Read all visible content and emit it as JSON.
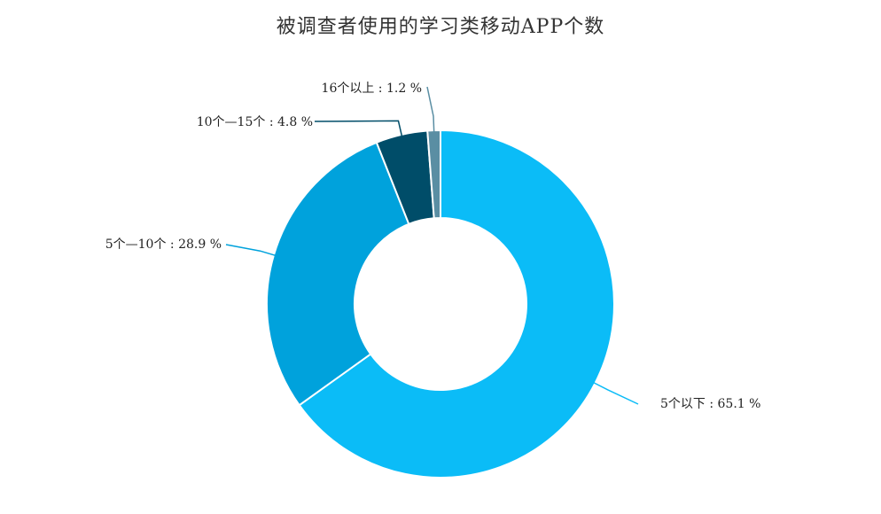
{
  "chart_data": {
    "type": "pie",
    "title": "被调查者使用的学习类移动APP个数",
    "slices": [
      {
        "label": "5个以下",
        "value": 65.1,
        "text": "5个以下 : 65.1 %",
        "color": "#0bbcf7"
      },
      {
        "label": "5个—10个",
        "value": 28.9,
        "text": "5个—10个 : 28.9 %",
        "color": "#00a2dc"
      },
      {
        "label": "10个—15个",
        "value": 4.8,
        "text": "10个—15个 : 4.8 %",
        "color": "#004d69"
      },
      {
        "label": "16个以上",
        "value": 1.2,
        "text": "16个以上 : 1.2 %",
        "color": "#5a8ea3"
      }
    ]
  }
}
